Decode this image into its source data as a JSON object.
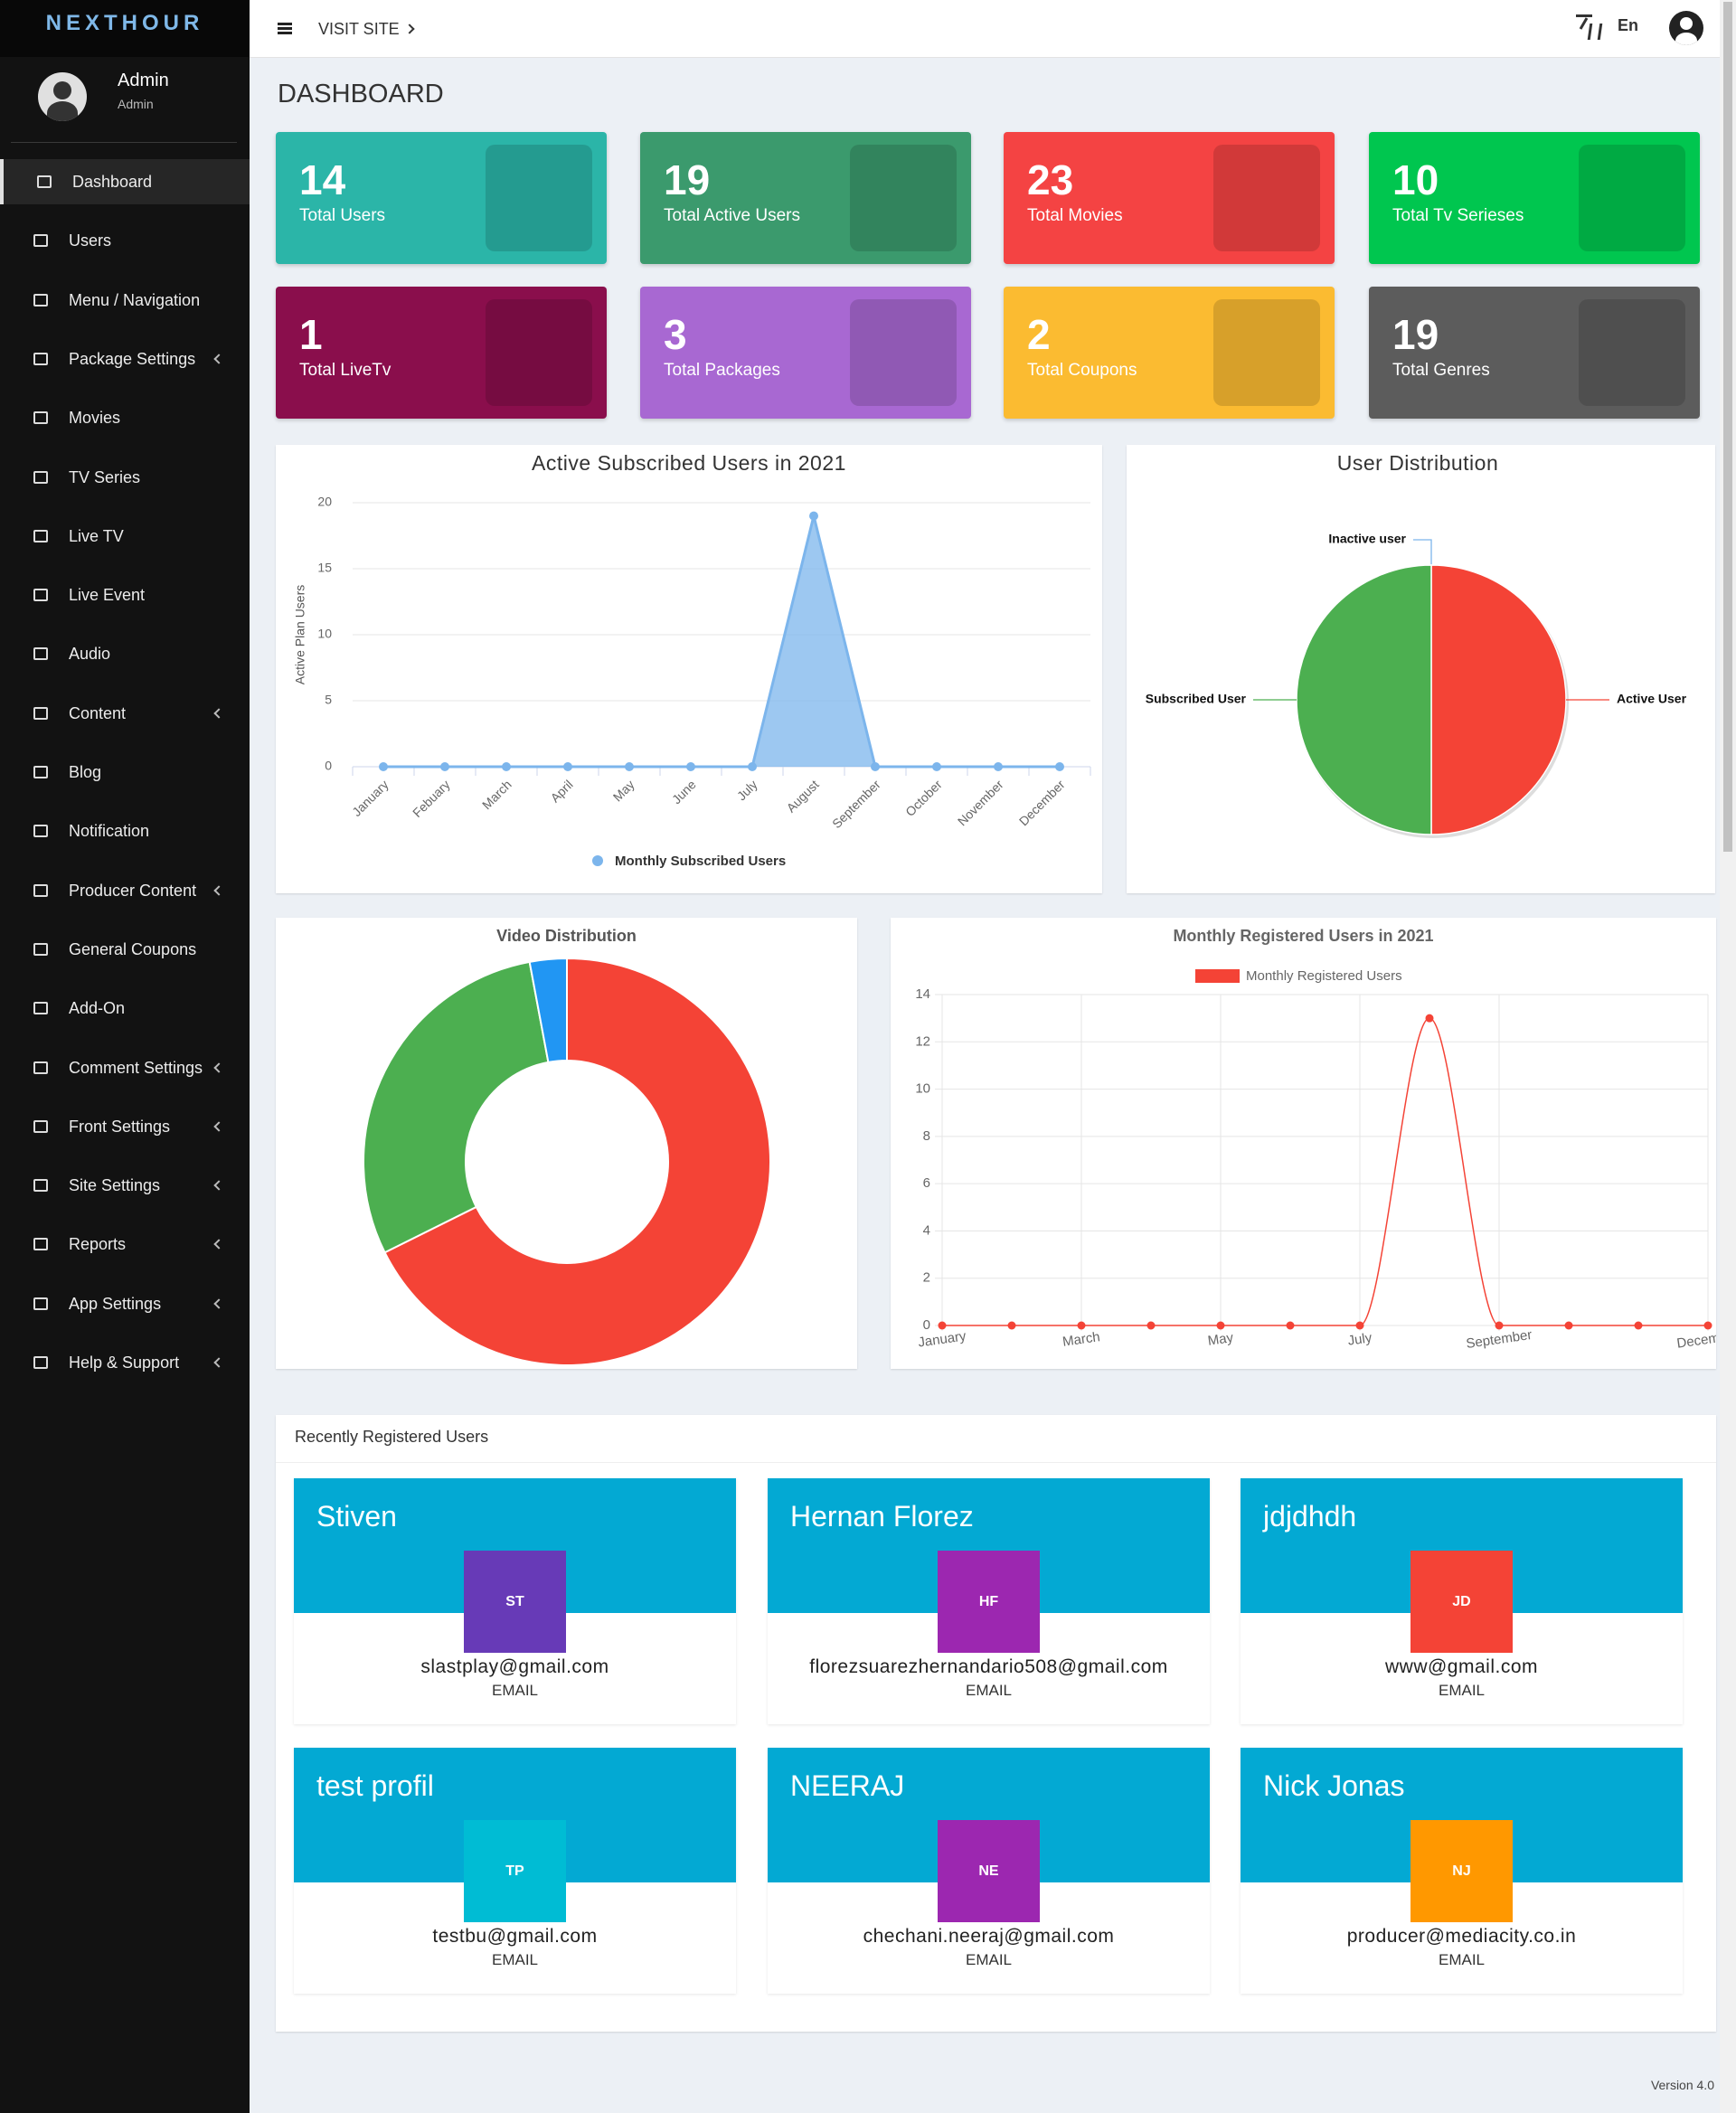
{
  "brand": "NEXTHOUR",
  "header": {
    "visit_site": "VISIT SITE",
    "language": "En"
  },
  "profile": {
    "name": "Admin",
    "role": "Admin"
  },
  "menu": [
    {
      "label": "Dashboard",
      "active": true,
      "submenu": false
    },
    {
      "label": "Users",
      "active": false,
      "submenu": false
    },
    {
      "label": "Menu / Navigation",
      "active": false,
      "submenu": false
    },
    {
      "label": "Package Settings",
      "active": false,
      "submenu": true
    },
    {
      "label": "Movies",
      "active": false,
      "submenu": false
    },
    {
      "label": "TV Series",
      "active": false,
      "submenu": false
    },
    {
      "label": "Live TV",
      "active": false,
      "submenu": false
    },
    {
      "label": "Live Event",
      "active": false,
      "submenu": false
    },
    {
      "label": "Audio",
      "active": false,
      "submenu": false
    },
    {
      "label": "Content",
      "active": false,
      "submenu": true
    },
    {
      "label": "Blog",
      "active": false,
      "submenu": false
    },
    {
      "label": "Notification",
      "active": false,
      "submenu": false
    },
    {
      "label": "Producer Content",
      "active": false,
      "submenu": true
    },
    {
      "label": "General Coupons",
      "active": false,
      "submenu": false
    },
    {
      "label": "Add-On",
      "active": false,
      "submenu": false
    },
    {
      "label": "Comment Settings",
      "active": false,
      "submenu": true
    },
    {
      "label": "Front Settings",
      "active": false,
      "submenu": true
    },
    {
      "label": "Site Settings",
      "active": false,
      "submenu": true
    },
    {
      "label": "Reports",
      "active": false,
      "submenu": true
    },
    {
      "label": "App Settings",
      "active": false,
      "submenu": true
    },
    {
      "label": "Help & Support",
      "active": false,
      "submenu": true
    }
  ],
  "page_title": "DASHBOARD",
  "stats": [
    {
      "value": 14,
      "label": "Total Users",
      "color": "#2bb5a8"
    },
    {
      "value": 19,
      "label": "Total Active Users",
      "color": "#3b9a6d"
    },
    {
      "value": 23,
      "label": "Total Movies",
      "color": "#f44343"
    },
    {
      "value": 10,
      "label": "Total Tv Serieses",
      "color": "#00c64f"
    },
    {
      "value": 1,
      "label": "Total LiveTv",
      "color": "#8a0e4c"
    },
    {
      "value": 3,
      "label": "Total Packages",
      "color": "#a868d2"
    },
    {
      "value": 2,
      "label": "Total Coupons",
      "color": "#fbbb31"
    },
    {
      "value": 19,
      "label": "Total Genres",
      "color": "#5c5c5c"
    }
  ],
  "chart_data": [
    {
      "type": "area",
      "title": "Active Subscribed Users in 2021",
      "y_label": "Active Plan Users",
      "categories": [
        "January",
        "Febuary",
        "March",
        "April",
        "May",
        "June",
        "July",
        "August",
        "September",
        "October",
        "November",
        "December"
      ],
      "series": [
        {
          "name": "Monthly Subscribed Users",
          "color": "#7cb5ec",
          "values": [
            0,
            0,
            0,
            0,
            0,
            0,
            0,
            19,
            0,
            0,
            0,
            0
          ]
        }
      ],
      "ylim": [
        0,
        20
      ],
      "yticks": [
        0,
        5,
        10,
        15,
        20
      ],
      "grid": true
    },
    {
      "type": "pie",
      "title": "User Distribution",
      "categories": [
        "Inactive user",
        "Active User",
        "Subscribed User"
      ],
      "values": [
        0,
        50,
        50
      ],
      "colors": [
        "#7cb5ec",
        "#f44336",
        "#4caf50"
      ]
    },
    {
      "type": "doughnut",
      "title": "Video Distribution",
      "values": [
        23,
        10,
        1
      ],
      "colors": [
        "#f44336",
        "#4caf50",
        "#2196f3"
      ]
    },
    {
      "type": "line",
      "title": "Monthly Registered Users in 2021",
      "categories": [
        "January",
        null,
        "March",
        null,
        "May",
        null,
        "July",
        null,
        "September",
        null,
        null,
        "December"
      ],
      "series": [
        {
          "name": "Monthly Registered Users",
          "color": "#f44336",
          "values": [
            0,
            0,
            0,
            0,
            0,
            0,
            0,
            13,
            0,
            0,
            0,
            0
          ]
        }
      ],
      "ylim": [
        0,
        14
      ],
      "yticks": [
        0,
        2,
        4,
        6,
        8,
        10,
        12,
        14
      ],
      "grid": true,
      "smooth": true
    }
  ],
  "recent_users": {
    "title": "Recently Registered Users",
    "users": [
      {
        "name": "Stiven",
        "initials": "ST",
        "avatar_color": "#673ab7",
        "email": "slastplay@gmail.com",
        "email_caption": "EMAIL"
      },
      {
        "name": "Hernan Florez",
        "initials": "HF",
        "avatar_color": "#9c27b0",
        "email": "florezsuarezhernandario508@gmail.com",
        "email_caption": "EMAIL"
      },
      {
        "name": "jdjdhdh",
        "initials": "JD",
        "avatar_color": "#f44336",
        "email": "www@gmail.com",
        "email_caption": "EMAIL"
      },
      {
        "name": "test profil",
        "initials": "TP",
        "avatar_color": "#00bcd4",
        "email": "testbu@gmail.com",
        "email_caption": "EMAIL"
      },
      {
        "name": "NEERAJ",
        "initials": "NE",
        "avatar_color": "#9c27b0",
        "email": "chechani.neeraj@gmail.com",
        "email_caption": "EMAIL"
      },
      {
        "name": "Nick Jonas",
        "initials": "NJ",
        "avatar_color": "#ff9800",
        "email": "producer@mediacity.co.in",
        "email_caption": "EMAIL"
      }
    ]
  },
  "footer": {
    "version": "Version 4.0"
  }
}
